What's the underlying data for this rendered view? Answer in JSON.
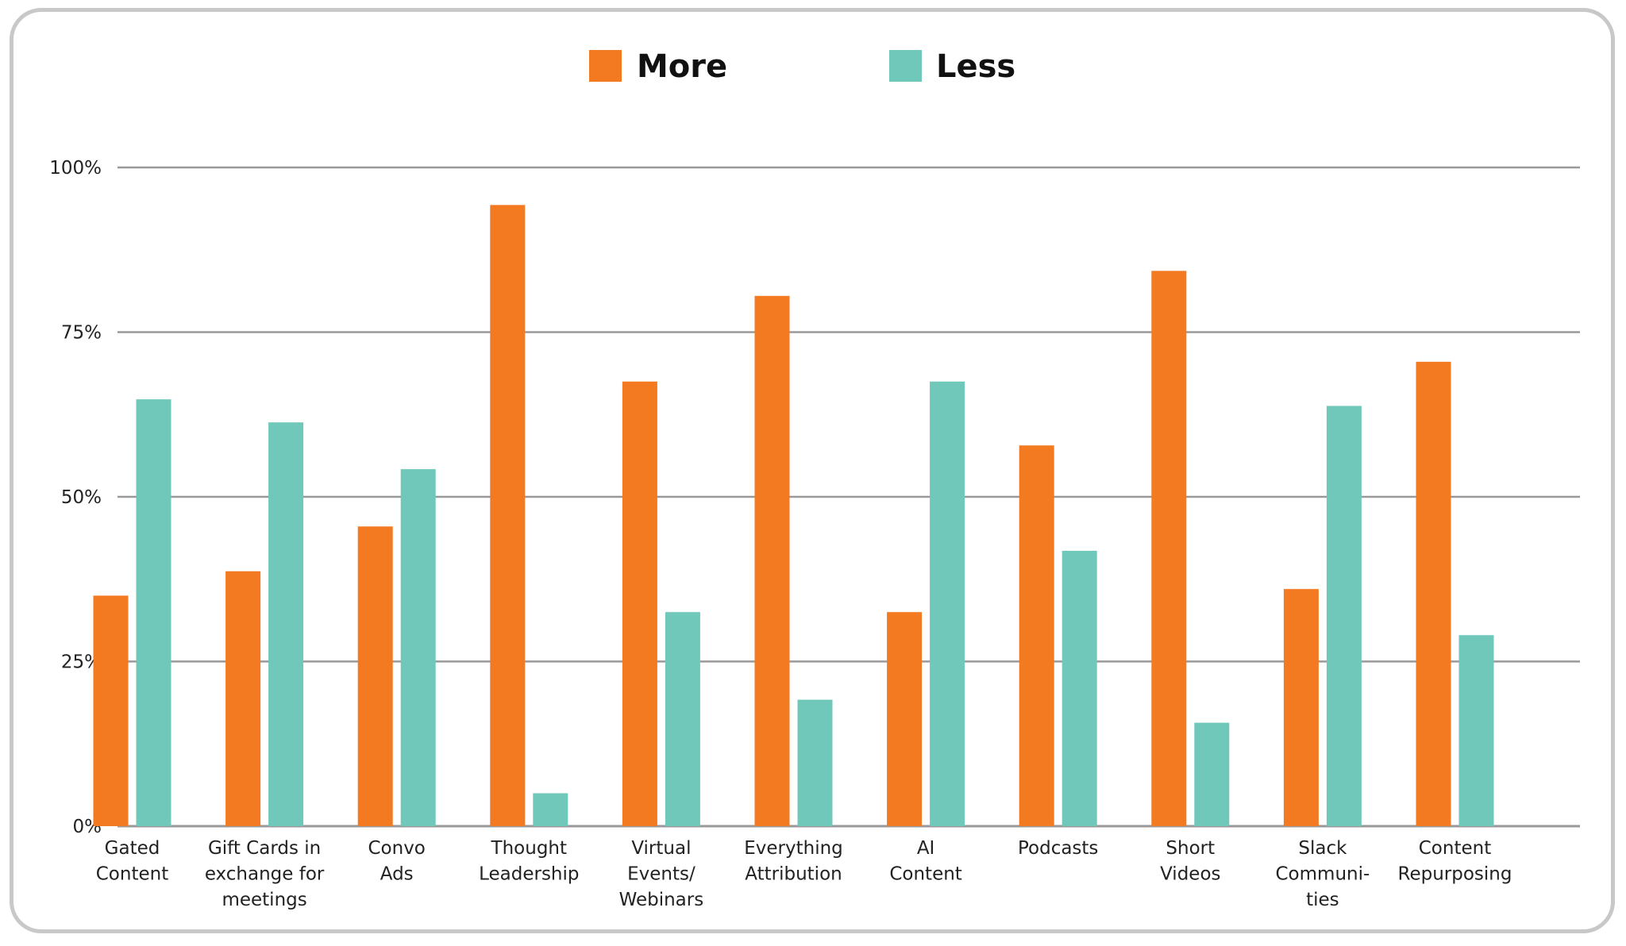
{
  "chart_data": {
    "type": "bar",
    "categories": [
      [
        "Gated",
        "Content"
      ],
      [
        "Gift Cards in",
        "exchange for",
        "meetings"
      ],
      [
        "Convo",
        "Ads"
      ],
      [
        "Thought",
        "Leadership"
      ],
      [
        "Virtual",
        "Events/",
        "Webinars"
      ],
      [
        "Everything",
        "Attribution"
      ],
      [
        "AI",
        "Content"
      ],
      [
        "Podcasts"
      ],
      [
        "Short",
        "Videos"
      ],
      [
        "Slack",
        "Communi-",
        "ties"
      ],
      [
        "Content",
        "Repurposing"
      ]
    ],
    "series": [
      {
        "name": "More",
        "color": "#f37a20",
        "values": [
          35,
          38.7,
          45.5,
          94.3,
          67.5,
          80.5,
          32.5,
          57.8,
          84.3,
          36,
          70.5
        ]
      },
      {
        "name": "Less",
        "color": "#70c8bb",
        "values": [
          64.8,
          61.3,
          54.2,
          5,
          32.5,
          19.2,
          67.5,
          41.8,
          15.7,
          63.8,
          29
        ]
      }
    ],
    "yticks": [
      "0%",
      "25%",
      "50%",
      "75%",
      "100%"
    ],
    "ylim": [
      0,
      100
    ],
    "grid": true,
    "legend_position": "top-center",
    "title": "",
    "xlabel": "",
    "ylabel": ""
  }
}
